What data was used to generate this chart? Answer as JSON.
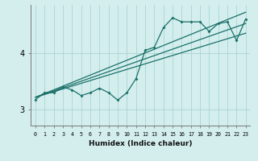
{
  "title": "",
  "xlabel": "Humidex (Indice chaleur)",
  "bg_color": "#d4eeee",
  "grid_color": "#aad4d4",
  "line_color": "#1a7068",
  "x_ticks": [
    0,
    1,
    2,
    3,
    4,
    5,
    6,
    7,
    8,
    9,
    10,
    11,
    12,
    13,
    14,
    15,
    16,
    17,
    18,
    19,
    20,
    21,
    22,
    23
  ],
  "ylim": [
    2.72,
    4.85
  ],
  "yticks": [
    3,
    4
  ],
  "series1": [
    3.18,
    3.3,
    3.3,
    3.4,
    3.35,
    3.25,
    3.3,
    3.38,
    3.3,
    3.17,
    3.3,
    3.55,
    4.05,
    4.1,
    4.45,
    4.62,
    4.55,
    4.55,
    4.55,
    4.38,
    4.52,
    4.55,
    4.22,
    4.6
  ],
  "trend1_x": [
    0,
    23
  ],
  "trend1_y": [
    3.22,
    4.72
  ],
  "trend2_x": [
    0,
    23
  ],
  "trend2_y": [
    3.22,
    4.52
  ],
  "trend3_x": [
    0,
    23
  ],
  "trend3_y": [
    3.22,
    4.35
  ]
}
